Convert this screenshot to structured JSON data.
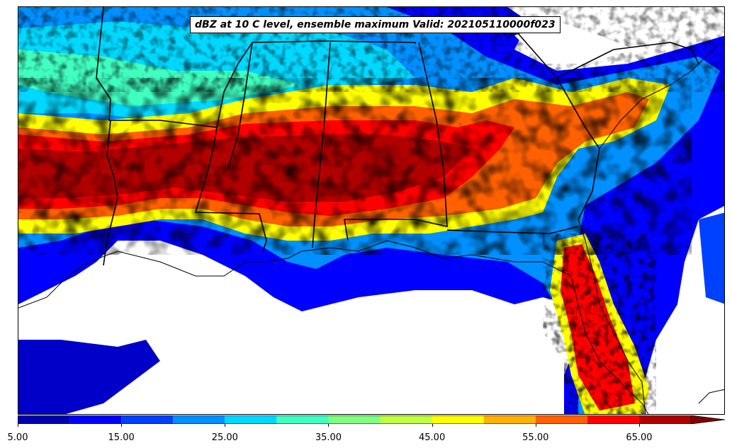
{
  "title": "dBZ at 10 C level, ensemble maximum Valid: 202105110000f023",
  "colorbar": {
    "levels": [
      5,
      10,
      15,
      20,
      25,
      30,
      35,
      40,
      45,
      50,
      55,
      60,
      65,
      70
    ],
    "colors": [
      "#0000b0",
      "#0000ff",
      "#0040ff",
      "#0090ff",
      "#00d8ff",
      "#40ffc0",
      "#80ff80",
      "#c0ff40",
      "#ffff00",
      "#ffb000",
      "#ff6000",
      "#ff0000",
      "#b00000"
    ],
    "extend_color": "#800000",
    "tick_labels": [
      "5.00",
      "15.00",
      "25.00",
      "35.00",
      "45.00",
      "55.00",
      "65.00"
    ],
    "tick_values": [
      5,
      15,
      25,
      35,
      45,
      55,
      65
    ]
  }
}
